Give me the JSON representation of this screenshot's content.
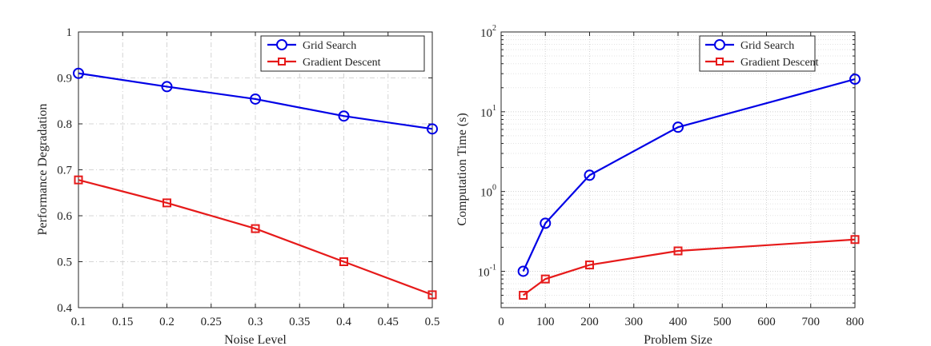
{
  "chart_data": [
    {
      "type": "line",
      "xlabel": "Noise Level",
      "ylabel": "Performance Degradation",
      "xlim": [
        0.1,
        0.5
      ],
      "ylim": [
        0.4,
        1.0
      ],
      "x_ticks": [
        "0.1",
        "0.15",
        "0.2",
        "0.25",
        "0.3",
        "0.35",
        "0.4",
        "0.45",
        "0.5"
      ],
      "y_ticks": [
        "0.4",
        "0.5",
        "0.6",
        "0.7",
        "0.8",
        "0.9",
        "1"
      ],
      "grid": "on (dash-dot)",
      "legend_position": "top-right",
      "x": [
        0.1,
        0.2,
        0.3,
        0.4,
        0.5
      ],
      "series": [
        {
          "name": "Grid Search",
          "marker": "circle",
          "color": "#0000e6",
          "values": [
            0.91,
            0.881,
            0.854,
            0.817,
            0.789
          ]
        },
        {
          "name": "Gradient Descent",
          "marker": "square",
          "color": "#e61a1a",
          "values": [
            0.678,
            0.628,
            0.572,
            0.5,
            0.428
          ]
        }
      ]
    },
    {
      "type": "line",
      "xlabel": "Problem Size",
      "ylabel": "Computation Time (s)",
      "xlim": [
        0,
        800
      ],
      "ylim": [
        0.035,
        100
      ],
      "y_scale": "log",
      "x_ticks": [
        "0",
        "100",
        "200",
        "300",
        "400",
        "500",
        "600",
        "700",
        "800"
      ],
      "y_ticks": [
        {
          "base": "10",
          "exp": "-1"
        },
        {
          "base": "10",
          "exp": "0"
        },
        {
          "base": "10",
          "exp": "1"
        },
        {
          "base": "10",
          "exp": "2"
        }
      ],
      "grid": "on (major and minor, dotted)",
      "legend_position": "top-right",
      "x": [
        50,
        100,
        200,
        400,
        800
      ],
      "series": [
        {
          "name": "Grid Search",
          "marker": "circle",
          "color": "#0000e6",
          "values": [
            0.1,
            0.4,
            1.6,
            6.4,
            25.6
          ]
        },
        {
          "name": "Gradient Descent",
          "marker": "square",
          "color": "#e61a1a",
          "values": [
            0.05,
            0.08,
            0.12,
            0.18,
            0.25
          ]
        }
      ]
    }
  ]
}
